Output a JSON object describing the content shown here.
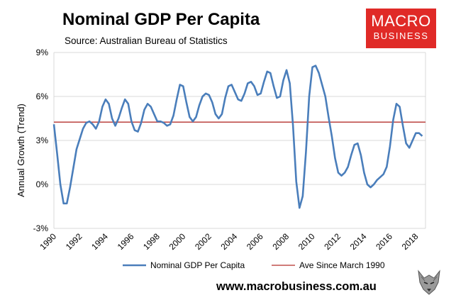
{
  "header": {
    "title": "Nominal GDP Per Capita",
    "subtitle": "Source: Australian Bureau of Statistics"
  },
  "logo": {
    "line1": "MACRO",
    "line2": "BUSINESS",
    "color": "#e02a27"
  },
  "footer": {
    "website": "www.macrobusiness.com.au"
  },
  "chart_data": {
    "type": "line",
    "title": "Nominal GDP Per Capita",
    "xlabel": "",
    "ylabel": "Annual Growth (Trend)",
    "xlim": [
      1990,
      2018.75
    ],
    "ylim": [
      -3,
      9
    ],
    "yticks": [
      -3,
      0,
      3,
      6,
      9
    ],
    "ytick_labels": [
      "-3%",
      "0%",
      "3%",
      "6%",
      "9%"
    ],
    "xticks": [
      1990,
      1992,
      1994,
      1996,
      1998,
      2000,
      2002,
      2004,
      2006,
      2008,
      2010,
      2012,
      2014,
      2016,
      2018
    ],
    "xtick_labels": [
      "1990",
      "1992",
      "1994",
      "1996",
      "1998",
      "2000",
      "2002",
      "2004",
      "2006",
      "2008",
      "2010",
      "2012",
      "2014",
      "2016",
      "2018"
    ],
    "legend_position": "bottom",
    "grid": "horizontal",
    "series": [
      {
        "name": "Nominal GDP Per Capita",
        "color": "#4a7ebb",
        "x": [
          1990.0,
          1990.25,
          1990.5,
          1990.75,
          1991.0,
          1991.25,
          1991.5,
          1991.75,
          1992.0,
          1992.25,
          1992.5,
          1992.75,
          1993.0,
          1993.25,
          1993.5,
          1993.75,
          1994.0,
          1994.25,
          1994.5,
          1994.75,
          1995.0,
          1995.25,
          1995.5,
          1995.75,
          1996.0,
          1996.25,
          1996.5,
          1996.75,
          1997.0,
          1997.25,
          1997.5,
          1997.75,
          1998.0,
          1998.25,
          1998.5,
          1998.75,
          1999.0,
          1999.25,
          1999.5,
          1999.75,
          2000.0,
          2000.25,
          2000.5,
          2000.75,
          2001.0,
          2001.25,
          2001.5,
          2001.75,
          2002.0,
          2002.25,
          2002.5,
          2002.75,
          2003.0,
          2003.25,
          2003.5,
          2003.75,
          2004.0,
          2004.25,
          2004.5,
          2004.75,
          2005.0,
          2005.25,
          2005.5,
          2005.75,
          2006.0,
          2006.25,
          2006.5,
          2006.75,
          2007.0,
          2007.25,
          2007.5,
          2007.75,
          2008.0,
          2008.25,
          2008.5,
          2008.75,
          2009.0,
          2009.25,
          2009.5,
          2009.75,
          2010.0,
          2010.25,
          2010.5,
          2010.75,
          2011.0,
          2011.25,
          2011.5,
          2011.75,
          2012.0,
          2012.25,
          2012.5,
          2012.75,
          2013.0,
          2013.25,
          2013.5,
          2013.75,
          2014.0,
          2014.25,
          2014.5,
          2014.75,
          2015.0,
          2015.25,
          2015.5,
          2015.75,
          2016.0,
          2016.25,
          2016.5,
          2016.75,
          2017.0,
          2017.25,
          2017.5,
          2017.75,
          2018.0,
          2018.25,
          2018.5
        ],
        "values": [
          4.1,
          2.1,
          0.0,
          -1.3,
          -1.3,
          -0.2,
          1.1,
          2.4,
          3.1,
          3.8,
          4.2,
          4.3,
          4.1,
          3.8,
          4.3,
          5.3,
          5.8,
          5.5,
          4.5,
          4.0,
          4.5,
          5.2,
          5.8,
          5.5,
          4.3,
          3.7,
          3.6,
          4.2,
          5.1,
          5.5,
          5.3,
          4.8,
          4.3,
          4.3,
          4.2,
          4.0,
          4.1,
          4.7,
          5.8,
          6.8,
          6.7,
          5.6,
          4.6,
          4.3,
          4.6,
          5.4,
          6.0,
          6.2,
          6.1,
          5.6,
          4.8,
          4.5,
          4.8,
          5.9,
          6.7,
          6.8,
          6.3,
          5.8,
          5.7,
          6.2,
          6.9,
          7.0,
          6.7,
          6.1,
          6.2,
          7.0,
          7.7,
          7.6,
          6.7,
          5.9,
          6.0,
          7.1,
          7.8,
          6.9,
          4.0,
          0.2,
          -1.6,
          -0.8,
          2.2,
          6.0,
          8.0,
          8.1,
          7.6,
          6.8,
          6.0,
          4.6,
          3.3,
          1.8,
          0.8,
          0.6,
          0.8,
          1.2,
          2.0,
          2.7,
          2.8,
          2.0,
          0.8,
          0.0,
          -0.2,
          0.0,
          0.3,
          0.5,
          0.7,
          1.2,
          2.6,
          4.4,
          5.5,
          5.3,
          4.0,
          2.8,
          2.5,
          3.0,
          3.5,
          3.5,
          3.3
        ]
      },
      {
        "name": "Ave Since March 1990",
        "color": "#c0504d",
        "x": [
          1990.0,
          2018.75
        ],
        "values": [
          4.25,
          4.25
        ]
      }
    ]
  }
}
